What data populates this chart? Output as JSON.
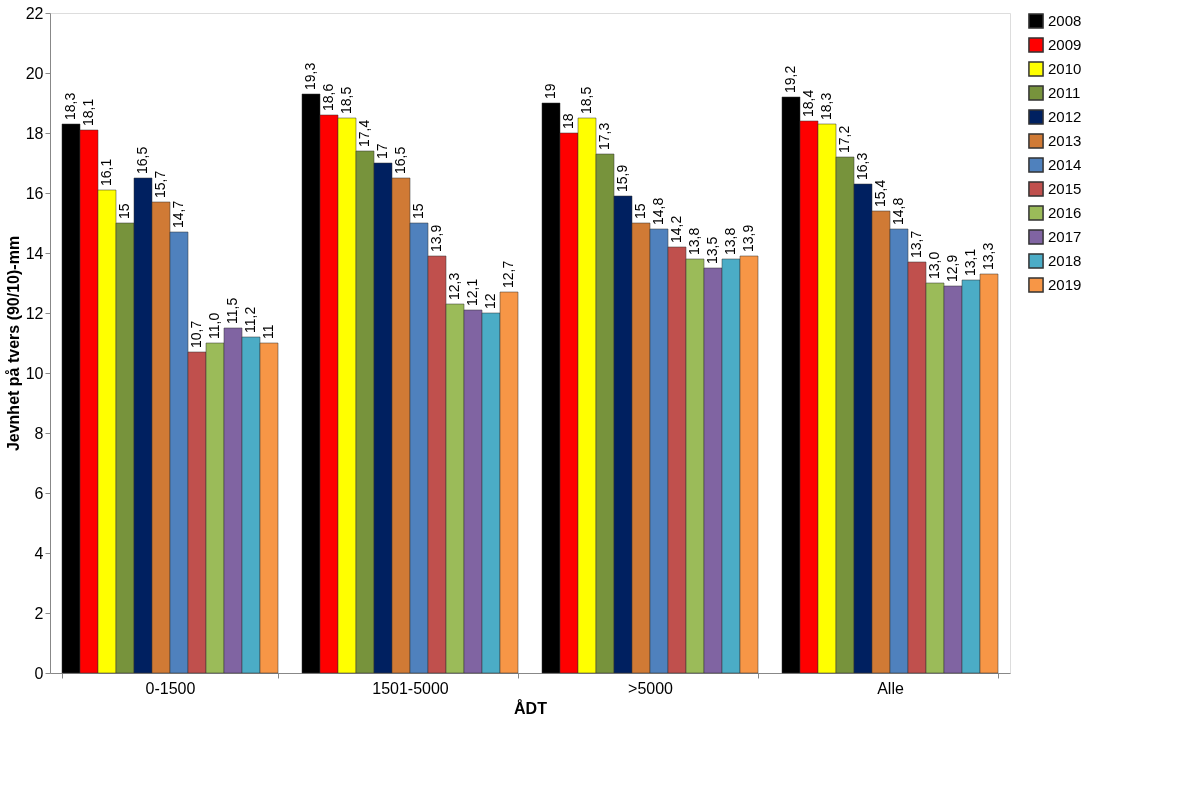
{
  "chart_data": {
    "type": "bar",
    "xlabel": "ÅDT",
    "ylabel": "Jevnhet på tvers (90/10)-mm",
    "categories": [
      "0-1500",
      "1501-5000",
      ">5000",
      "Alle"
    ],
    "ylim": [
      0,
      22
    ],
    "yticks": [
      0,
      2,
      4,
      6,
      8,
      10,
      12,
      14,
      16,
      18,
      20,
      22
    ],
    "grid": false,
    "legend": "right",
    "series": [
      {
        "name": "2008",
        "color": "#000000",
        "values": [
          18.3,
          19.3,
          19,
          19.2
        ],
        "value_labels": [
          "18,3",
          "19,3",
          "19",
          "19,2"
        ]
      },
      {
        "name": "2009",
        "color": "#ff0000",
        "values": [
          18.1,
          18.6,
          18,
          18.4
        ],
        "value_labels": [
          "18,1",
          "18,6",
          "18",
          "18,4"
        ]
      },
      {
        "name": "2010",
        "color": "#ffff00",
        "values": [
          16.1,
          18.5,
          18.5,
          18.3
        ],
        "value_labels": [
          "16,1",
          "18,5",
          "18,5",
          "18,3"
        ]
      },
      {
        "name": "2011",
        "color": "#77933c",
        "values": [
          15,
          17.4,
          17.3,
          17.2
        ],
        "value_labels": [
          "15",
          "17,4",
          "17,3",
          "17,2"
        ]
      },
      {
        "name": "2012",
        "color": "#002060",
        "values": [
          16.5,
          17,
          15.9,
          16.3
        ],
        "value_labels": [
          "16,5",
          "17",
          "15,9",
          "16,3"
        ]
      },
      {
        "name": "2013",
        "color": "#d07a35",
        "values": [
          15.7,
          16.5,
          15,
          15.4
        ],
        "value_labels": [
          "15,7",
          "16,5",
          "15",
          "15,4"
        ]
      },
      {
        "name": "2014",
        "color": "#4f81bd",
        "values": [
          14.7,
          15,
          14.8,
          14.8
        ],
        "value_labels": [
          "14,7",
          "15",
          "14,8",
          "14,8"
        ]
      },
      {
        "name": "2015",
        "color": "#c0504d",
        "values": [
          10.7,
          13.9,
          14.2,
          13.7
        ],
        "value_labels": [
          "10,7",
          "13,9",
          "14,2",
          "13,7"
        ]
      },
      {
        "name": "2016",
        "color": "#9bbb59",
        "values": [
          11.0,
          12.3,
          13.8,
          13.0
        ],
        "value_labels": [
          "11,0",
          "12,3",
          "13,8",
          "13,0"
        ]
      },
      {
        "name": "2017",
        "color": "#8064a2",
        "values": [
          11.5,
          12.1,
          13.5,
          12.9
        ],
        "value_labels": [
          "11,5",
          "12,1",
          "13,5",
          "12,9"
        ]
      },
      {
        "name": "2018",
        "color": "#4bacc6",
        "values": [
          11.2,
          12,
          13.8,
          13.1
        ],
        "value_labels": [
          "11,2",
          "12",
          "13,8",
          "13,1"
        ]
      },
      {
        "name": "2019",
        "color": "#f79646",
        "values": [
          11,
          12.7,
          13.9,
          13.3
        ],
        "value_labels": [
          "11",
          "12,7",
          "13,9",
          "13,3"
        ]
      }
    ]
  }
}
